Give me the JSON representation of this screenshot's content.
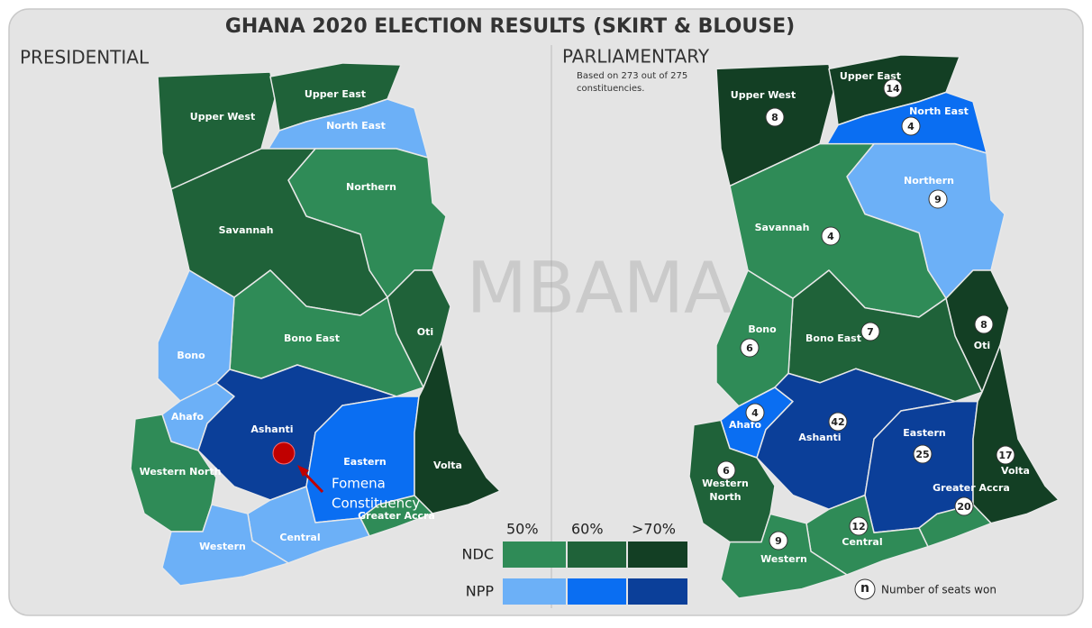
{
  "title": "GHANA 2020 ELECTION RESULTS (SKIRT & BLOUSE)",
  "watermark": "MBAMA",
  "presidential": {
    "title": "PRESIDENTIAL",
    "regions": [
      {
        "name": "Upper West",
        "color": "#1f6239"
      },
      {
        "name": "Upper East",
        "color": "#1f6239"
      },
      {
        "name": "North East",
        "color": "#6cb0f7"
      },
      {
        "name": "Northern",
        "color": "#2f8b57"
      },
      {
        "name": "Savannah",
        "color": "#1f6239"
      },
      {
        "name": "Oti",
        "color": "#1f6239"
      },
      {
        "name": "Bono East",
        "color": "#2f8b57"
      },
      {
        "name": "Bono",
        "color": "#6cb0f7"
      },
      {
        "name": "Ahafo",
        "color": "#6cb0f7"
      },
      {
        "name": "Western North",
        "color": "#2f8b57"
      },
      {
        "name": "Ashanti",
        "color": "#0b3f99"
      },
      {
        "name": "Eastern",
        "color": "#0a6ef2"
      },
      {
        "name": "Volta",
        "color": "#133f24"
      },
      {
        "name": "Greater Accra",
        "color": "#2f8b57"
      },
      {
        "name": "Central",
        "color": "#6cb0f7"
      },
      {
        "name": "Western",
        "color": "#6cb0f7"
      }
    ],
    "annotation": [
      "Fomena",
      "Constituency"
    ]
  },
  "parliamentary": {
    "title": "PARLIAMENTARY",
    "note": [
      "Based on 273 out of 275",
      "constituencies."
    ],
    "regions": [
      {
        "name": "Upper West",
        "color": "#133f24",
        "seats": 8
      },
      {
        "name": "Upper East",
        "color": "#133f24",
        "seats": 14
      },
      {
        "name": "North East",
        "color": "#0a6ef2",
        "seats": 4
      },
      {
        "name": "Northern",
        "color": "#6cb0f7",
        "seats": 9
      },
      {
        "name": "Savannah",
        "color": "#2f8b57",
        "seats": 4
      },
      {
        "name": "Oti",
        "color": "#133f24",
        "seats": 8
      },
      {
        "name": "Bono East",
        "color": "#1f6239",
        "seats": 7
      },
      {
        "name": "Bono",
        "color": "#2f8b57",
        "seats": 6
      },
      {
        "name": "Ahafo",
        "color": "#0a6ef2",
        "seats": 4
      },
      {
        "name": [
          "Western",
          "North"
        ],
        "color": "#1f6239",
        "seats": 6
      },
      {
        "name": "Ashanti",
        "color": "#0b3f99",
        "seats": 42
      },
      {
        "name": "Eastern",
        "color": "#0b3f99",
        "seats": 25
      },
      {
        "name": "Volta",
        "color": "#133f24",
        "seats": 17
      },
      {
        "name": "Greater Accra",
        "color": "#2f8b57",
        "seats": 20
      },
      {
        "name": "Central",
        "color": "#2f8b57",
        "seats": 12
      },
      {
        "name": "Western",
        "color": "#2f8b57",
        "seats": 9
      }
    ]
  },
  "legend": {
    "thresholds": [
      "50%",
      "60%",
      ">70%"
    ],
    "rows": [
      {
        "party": "NDC",
        "colors": [
          "#2f8b57",
          "#1f6239",
          "#133f24"
        ]
      },
      {
        "party": "NPP",
        "colors": [
          "#6cb0f7",
          "#0a6ef2",
          "#0b3f99"
        ]
      }
    ],
    "seat_key": {
      "symbol": "n",
      "label": "Number of seats won"
    }
  }
}
